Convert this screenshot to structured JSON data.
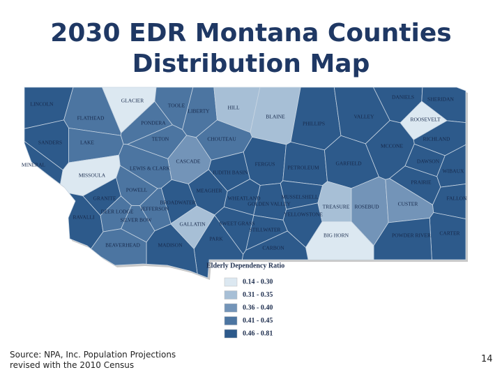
{
  "header": {
    "title_lines": [
      "2030 EDR Montana Counties",
      "Distribution Map"
    ]
  },
  "legend": {
    "title": "Elderly Dependency Ratio",
    "classes": [
      {
        "label": "0.14 - 0.30",
        "color": "#dce8f1"
      },
      {
        "label": "0.31 - 0.35",
        "color": "#a7bfd6"
      },
      {
        "label": "0.36 - 0.40",
        "color": "#7394b8"
      },
      {
        "label": "0.41 - 0.45",
        "color": "#4c75a1"
      },
      {
        "label": "0.46 - 0.81",
        "color": "#2d5a8b"
      }
    ]
  },
  "counties": [
    {
      "name": "LINCOLN",
      "color": "#2d5a8b"
    },
    {
      "name": "FLATHEAD",
      "color": "#4c75a1"
    },
    {
      "name": "GLACIER",
      "color": "#dce8f1"
    },
    {
      "name": "TOOLE",
      "color": "#4c75a1"
    },
    {
      "name": "LIBERTY",
      "color": "#4c75a1"
    },
    {
      "name": "HILL",
      "color": "#a7bfd6"
    },
    {
      "name": "BLAINE",
      "color": "#a7bfd6"
    },
    {
      "name": "PHILLIPS",
      "color": "#2d5a8b"
    },
    {
      "name": "VALLEY",
      "color": "#2d5a8b"
    },
    {
      "name": "DANIELS",
      "color": "#2d5a8b"
    },
    {
      "name": "SHERIDAN",
      "color": "#2d5a8b"
    },
    {
      "name": "ROOSEVELT",
      "color": "#dce8f1"
    },
    {
      "name": "RICHLAND",
      "color": "#2d5a8b"
    },
    {
      "name": "MCCONE",
      "color": "#2d5a8b"
    },
    {
      "name": "SANDERS",
      "color": "#2d5a8b"
    },
    {
      "name": "LAKE",
      "color": "#4c75a1"
    },
    {
      "name": "PONDERA",
      "color": "#4c75a1"
    },
    {
      "name": "TETON",
      "color": "#4c75a1"
    },
    {
      "name": "CHOUTEAU",
      "color": "#4c75a1"
    },
    {
      "name": "MINERAL",
      "color": "#2d5a8b"
    },
    {
      "name": "MISSOULA",
      "color": "#dce8f1"
    },
    {
      "name": "LEWIS & CLARK",
      "color": "#4c75a1"
    },
    {
      "name": "CASCADE",
      "color": "#7394b8"
    },
    {
      "name": "JUDITH BASIN",
      "color": "#2d5a8b"
    },
    {
      "name": "FERGUS",
      "color": "#2d5a8b"
    },
    {
      "name": "PETROLEUM",
      "color": "#2d5a8b"
    },
    {
      "name": "GARFIELD",
      "color": "#2d5a8b"
    },
    {
      "name": "DAWSON",
      "color": "#2d5a8b"
    },
    {
      "name": "WIBAUX",
      "color": "#2d5a8b"
    },
    {
      "name": "PRAIRIE",
      "color": "#2d5a8b"
    },
    {
      "name": "RAVALLI",
      "color": "#2d5a8b"
    },
    {
      "name": "GRANITE",
      "color": "#2d5a8b"
    },
    {
      "name": "POWELL",
      "color": "#4c75a1"
    },
    {
      "name": "DEER LODGE",
      "color": "#4c75a1"
    },
    {
      "name": "SILVER BOW",
      "color": "#4c75a1"
    },
    {
      "name": "JEFFERSON",
      "color": "#4c75a1"
    },
    {
      "name": "BROADWATER",
      "color": "#2d5a8b"
    },
    {
      "name": "MEAGHER",
      "color": "#2d5a8b"
    },
    {
      "name": "WHEATLAND",
      "color": "#2d5a8b"
    },
    {
      "name": "GOLDEN VALLEY",
      "color": "#2d5a8b"
    },
    {
      "name": "MUSSELSHELL",
      "color": "#2d5a8b"
    },
    {
      "name": "TREASURE",
      "color": "#a7bfd6"
    },
    {
      "name": "ROSEBUD",
      "color": "#7394b8"
    },
    {
      "name": "CUSTER",
      "color": "#7394b8"
    },
    {
      "name": "FALLON",
      "color": "#2d5a8b"
    },
    {
      "name": "CARTER",
      "color": "#2d5a8b"
    },
    {
      "name": "POWDER RIVER",
      "color": "#2d5a8b"
    },
    {
      "name": "BIG HORN",
      "color": "#dce8f1"
    },
    {
      "name": "YELLOWSTONE",
      "color": "#2d5a8b"
    },
    {
      "name": "STILLWATER",
      "color": "#2d5a8b"
    },
    {
      "name": "SWEET GRASS",
      "color": "#2d5a8b"
    },
    {
      "name": "PARK",
      "color": "#2d5a8b"
    },
    {
      "name": "CARBON",
      "color": "#2d5a8b"
    },
    {
      "name": "GALLATIN",
      "color": "#a7bfd6"
    },
    {
      "name": "MADISON",
      "color": "#2d5a8b"
    },
    {
      "name": "BEAVERHEAD",
      "color": "#4c75a1"
    }
  ],
  "footer": {
    "source_lines": [
      "Source: NPA, Inc. Population Projections",
      "revised with the 2010 Census"
    ],
    "page_number": "14"
  }
}
